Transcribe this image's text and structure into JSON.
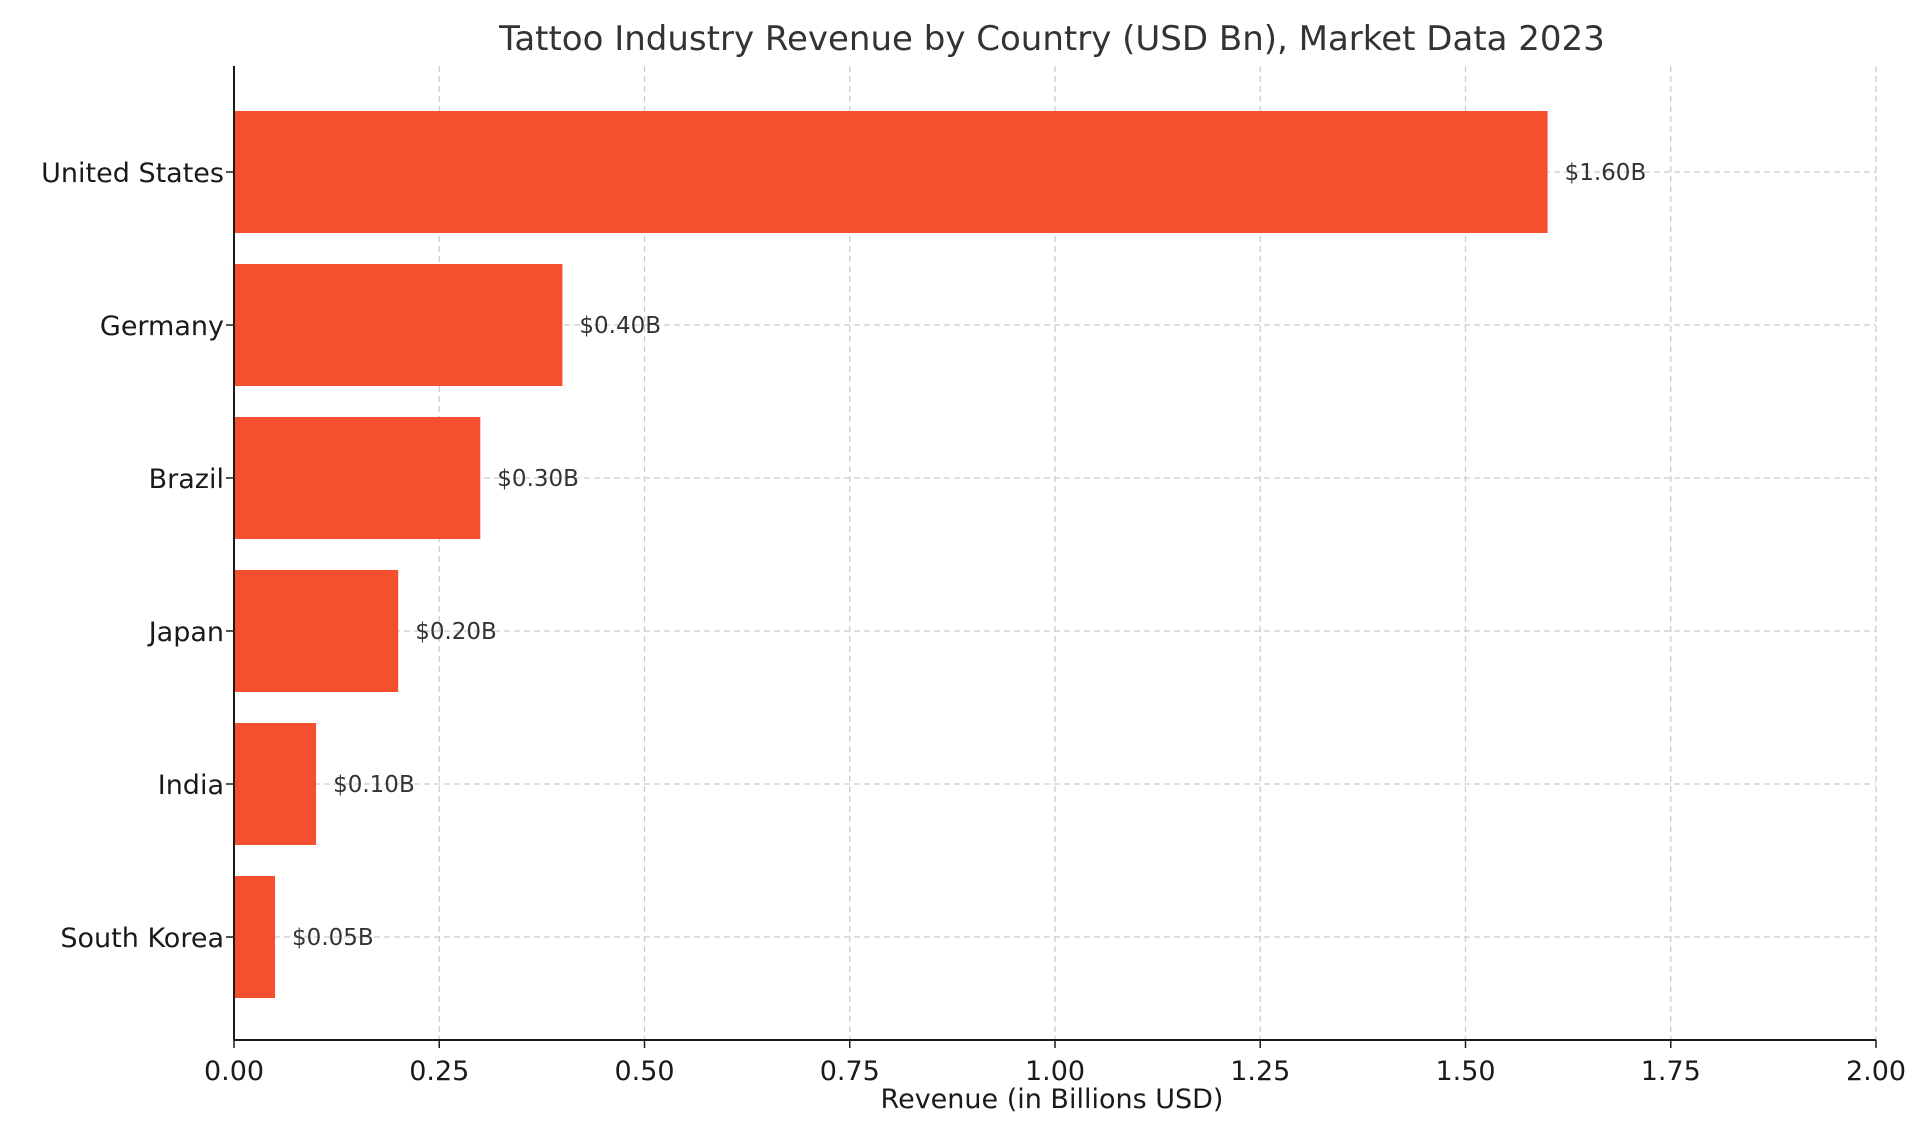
{
  "colors": {
    "bar": "#f44f2f",
    "grid": "#cccccc",
    "axis": "#1a1a1a"
  },
  "chart_data": {
    "type": "bar",
    "orientation": "horizontal",
    "title": "Tattoo Industry Revenue by Country (USD Bn), Market Data 2023",
    "xlabel": "Revenue (in Billions USD)",
    "ylabel": "",
    "xlim": [
      0,
      2.0
    ],
    "xticks": [
      0.0,
      0.25,
      0.5,
      0.75,
      1.0,
      1.25,
      1.5,
      1.75,
      2.0
    ],
    "xtick_labels": [
      "0.00",
      "0.25",
      "0.50",
      "0.75",
      "1.00",
      "1.25",
      "1.50",
      "1.75",
      "2.00"
    ],
    "grid": true,
    "categories": [
      "United States",
      "Germany",
      "Brazil",
      "Japan",
      "India",
      "South Korea"
    ],
    "values": [
      1.6,
      0.4,
      0.3,
      0.2,
      0.1,
      0.05
    ],
    "data_labels": [
      "$1.60B",
      "$0.40B",
      "$0.30B",
      "$0.20B",
      "$0.10B",
      "$0.05B"
    ]
  }
}
